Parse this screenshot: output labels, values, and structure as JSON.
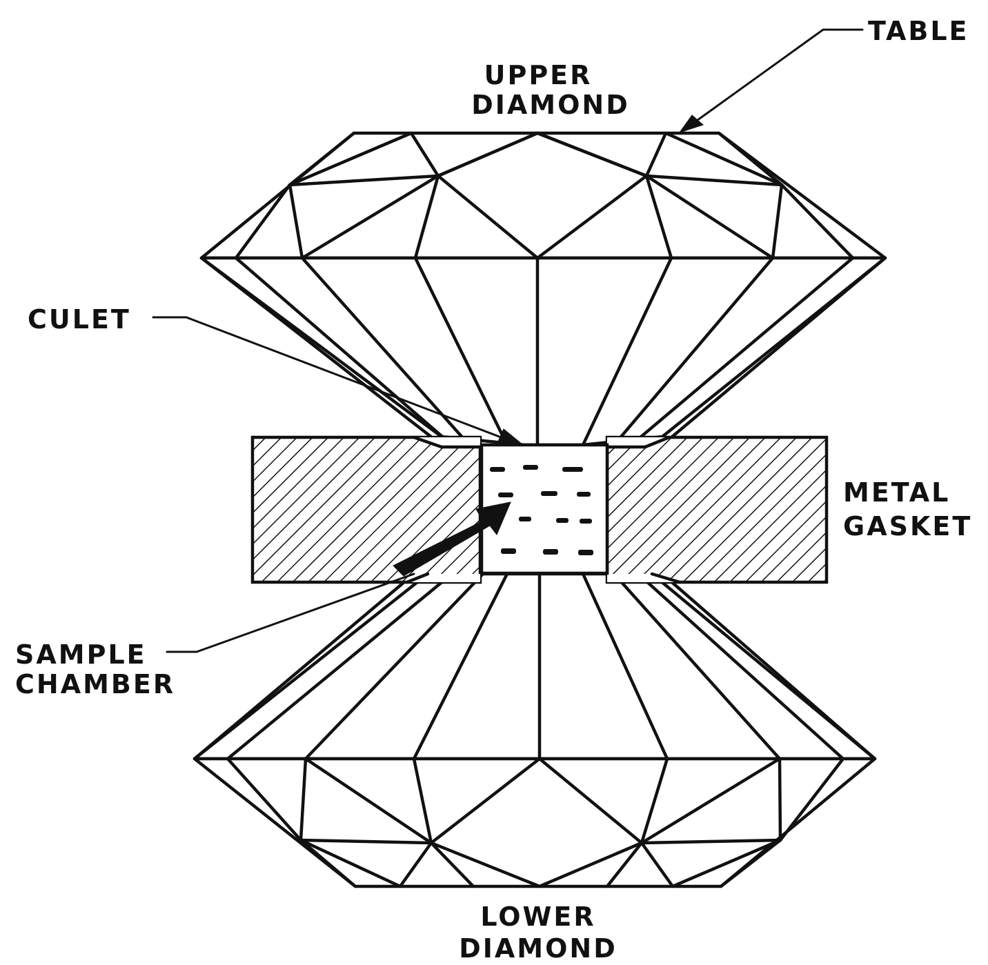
{
  "labels": {
    "table": "TABLE",
    "upper_diamond_line1": "UPPER",
    "upper_diamond_line2": "DIAMOND",
    "culet": "CULET",
    "metal_gasket_line1": "METAL",
    "metal_gasket_line2": "GASKET",
    "sample_chamber_line1": "SAMPLE",
    "sample_chamber_line2": "CHAMBER",
    "lower_diamond_line1": "LOWER",
    "lower_diamond_line2": "DIAMOND"
  },
  "colors": {
    "ink": "#111111",
    "background": "#ffffff"
  }
}
